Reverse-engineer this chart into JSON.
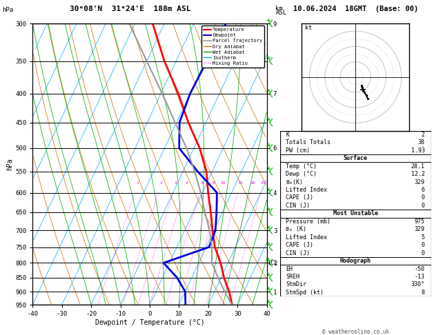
{
  "title_left": "30°08'N  31°24'E  188m ASL",
  "title_right": "10.06.2024  18GMT  (Base: 00)",
  "xlabel": "Dewpoint / Temperature (°C)",
  "ylabel_left": "hPa",
  "pressures": [
    300,
    350,
    400,
    450,
    500,
    550,
    600,
    650,
    700,
    750,
    800,
    850,
    900,
    950
  ],
  "temp_data": {
    "pressure": [
      950,
      900,
      850,
      800,
      750,
      700,
      650,
      600,
      550,
      500,
      450,
      400,
      350,
      300
    ],
    "temp": [
      28.1,
      25.0,
      21.0,
      17.5,
      13.0,
      9.5,
      6.0,
      2.0,
      -2.0,
      -8.0,
      -16.0,
      -24.0,
      -34.0,
      -44.0
    ]
  },
  "dewp_data": {
    "pressure": [
      950,
      900,
      850,
      800,
      750,
      700,
      650,
      600,
      550,
      500,
      450,
      400,
      350,
      300
    ],
    "dewp": [
      12.2,
      10.0,
      5.0,
      -2.0,
      11.0,
      10.5,
      8.0,
      5.0,
      -5.0,
      -15.0,
      -19.0,
      -20.0,
      -19.5,
      -19.0
    ]
  },
  "parcel_data": {
    "pressure": [
      950,
      900,
      850,
      800,
      750,
      700,
      650,
      600,
      550,
      500,
      450,
      400,
      350,
      300
    ],
    "temp": [
      28.1,
      23.5,
      19.0,
      14.5,
      12.0,
      8.5,
      4.0,
      -0.5,
      -6.0,
      -12.5,
      -20.5,
      -29.5,
      -40.0,
      -52.0
    ]
  },
  "t_min": -40,
  "t_max": 40,
  "p_min": 300,
  "p_max": 950,
  "skew_deg": 45,
  "lcl_pressure": 800,
  "mixing_ratios": [
    1,
    2,
    3,
    4,
    6,
    8,
    10,
    15,
    20,
    25
  ],
  "km_labels": {
    "pressures": [
      300,
      400,
      500,
      600,
      700,
      800,
      900
    ],
    "heights": [
      "9",
      "7",
      "6",
      "4",
      "3",
      "2",
      "1"
    ]
  },
  "wind_pressures": [
    300,
    350,
    400,
    450,
    500,
    550,
    600,
    650,
    700,
    750,
    800,
    850,
    900,
    950
  ],
  "stats": {
    "K": 2,
    "TotTot": 38,
    "PW": 1.93,
    "surf_temp": 28.1,
    "surf_dewp": 12.2,
    "surf_theta_e": 329,
    "surf_li": 6,
    "surf_cape": 0,
    "surf_cin": 0,
    "mu_pressure": 975,
    "mu_theta_e": 329,
    "mu_li": 5,
    "mu_cape": 0,
    "mu_cin": 0,
    "EH": -50,
    "SREH": -13,
    "StmDir": 330,
    "StmSpd": 8
  },
  "colors": {
    "temp": "#ff0000",
    "dewp": "#0000dd",
    "parcel": "#999999",
    "dry_adiabat": "#cc7700",
    "wet_adiabat": "#00aa00",
    "isotherm": "#00aaff",
    "mixing_ratio": "#ff00ff",
    "background": "#ffffff",
    "wind_barb": "#00bb00"
  },
  "hodograph_u": [
    4,
    4,
    4.5,
    5,
    6,
    7,
    8,
    7,
    6,
    5,
    4.5,
    4,
    4,
    4
  ],
  "hodograph_v": [
    -6,
    -6,
    -7,
    -8,
    -10,
    -12,
    -14,
    -12,
    -10,
    -8,
    -7,
    -6,
    -5.5,
    -5.5
  ]
}
